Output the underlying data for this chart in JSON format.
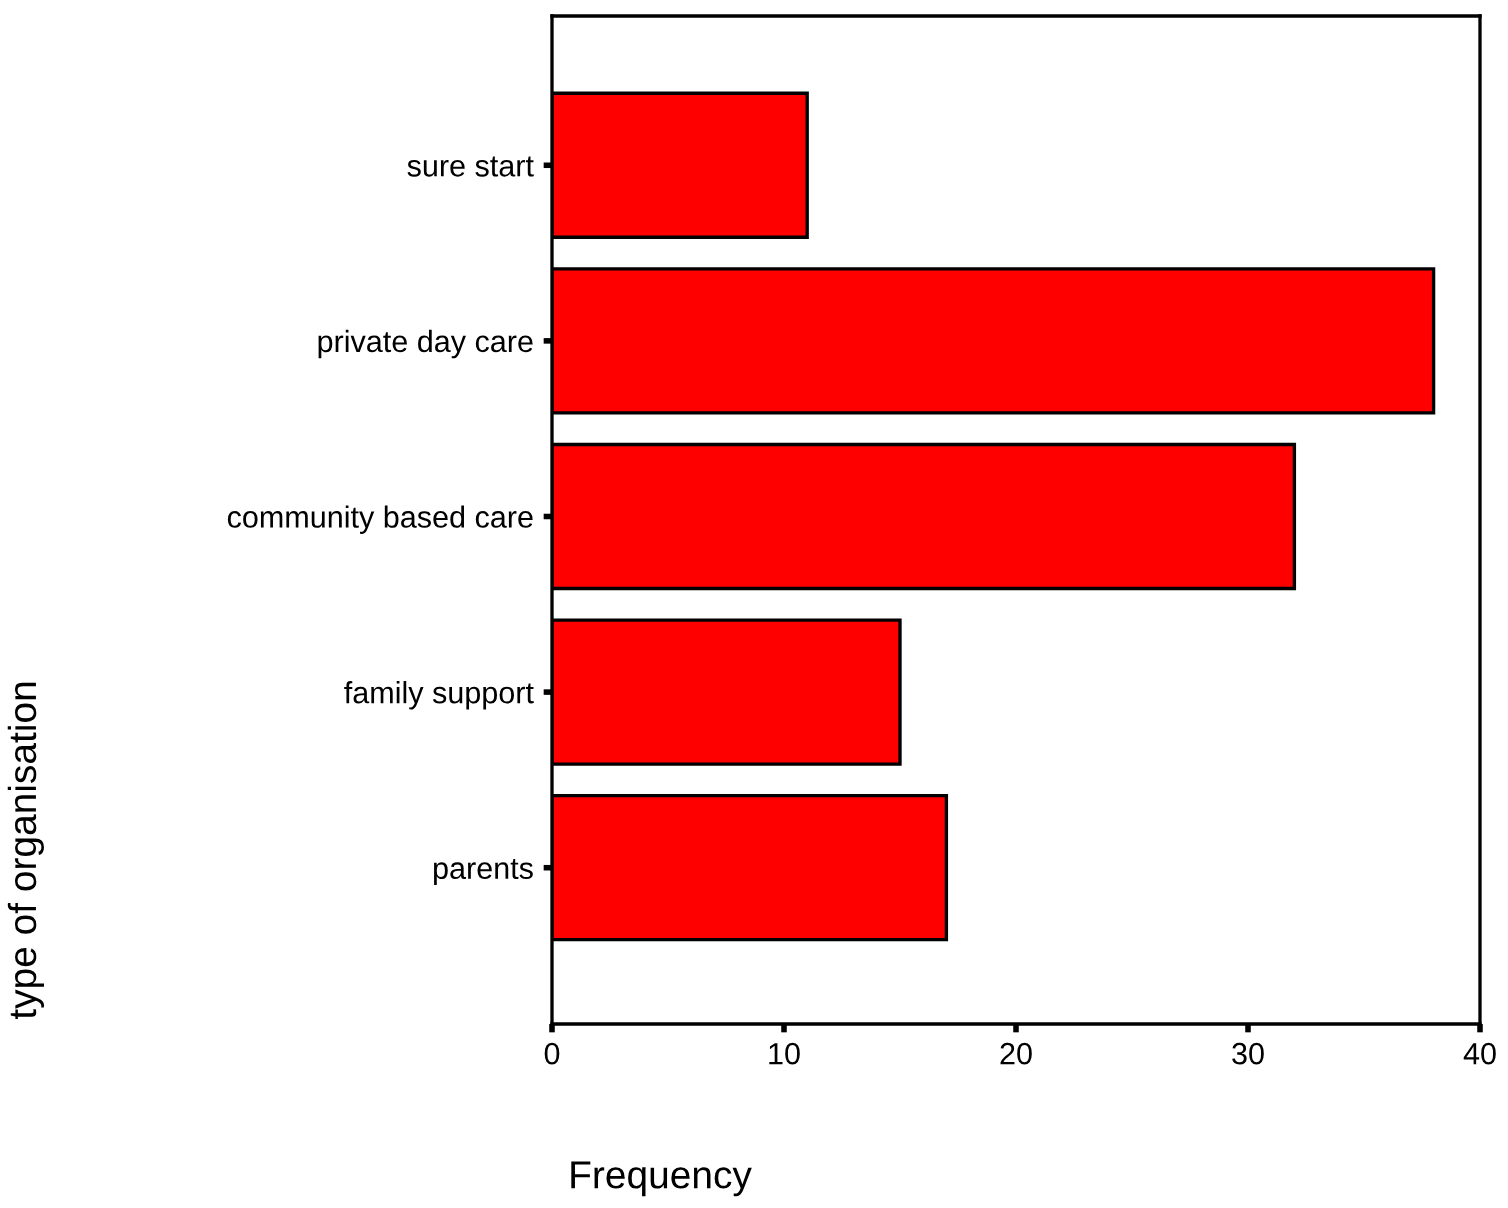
{
  "chart_data": {
    "type": "bar",
    "orientation": "horizontal",
    "categories": [
      "sure start",
      "private day care",
      "community based care",
      "family support",
      "parents"
    ],
    "values": [
      11,
      38,
      32,
      15,
      17
    ],
    "color": "#ff0000",
    "xlim": [
      0,
      40
    ],
    "xticks": [
      0,
      10,
      20,
      30,
      40
    ],
    "xlabel": "Frequency",
    "ylabel": "type of organisation",
    "grid": false,
    "legend": false
  }
}
